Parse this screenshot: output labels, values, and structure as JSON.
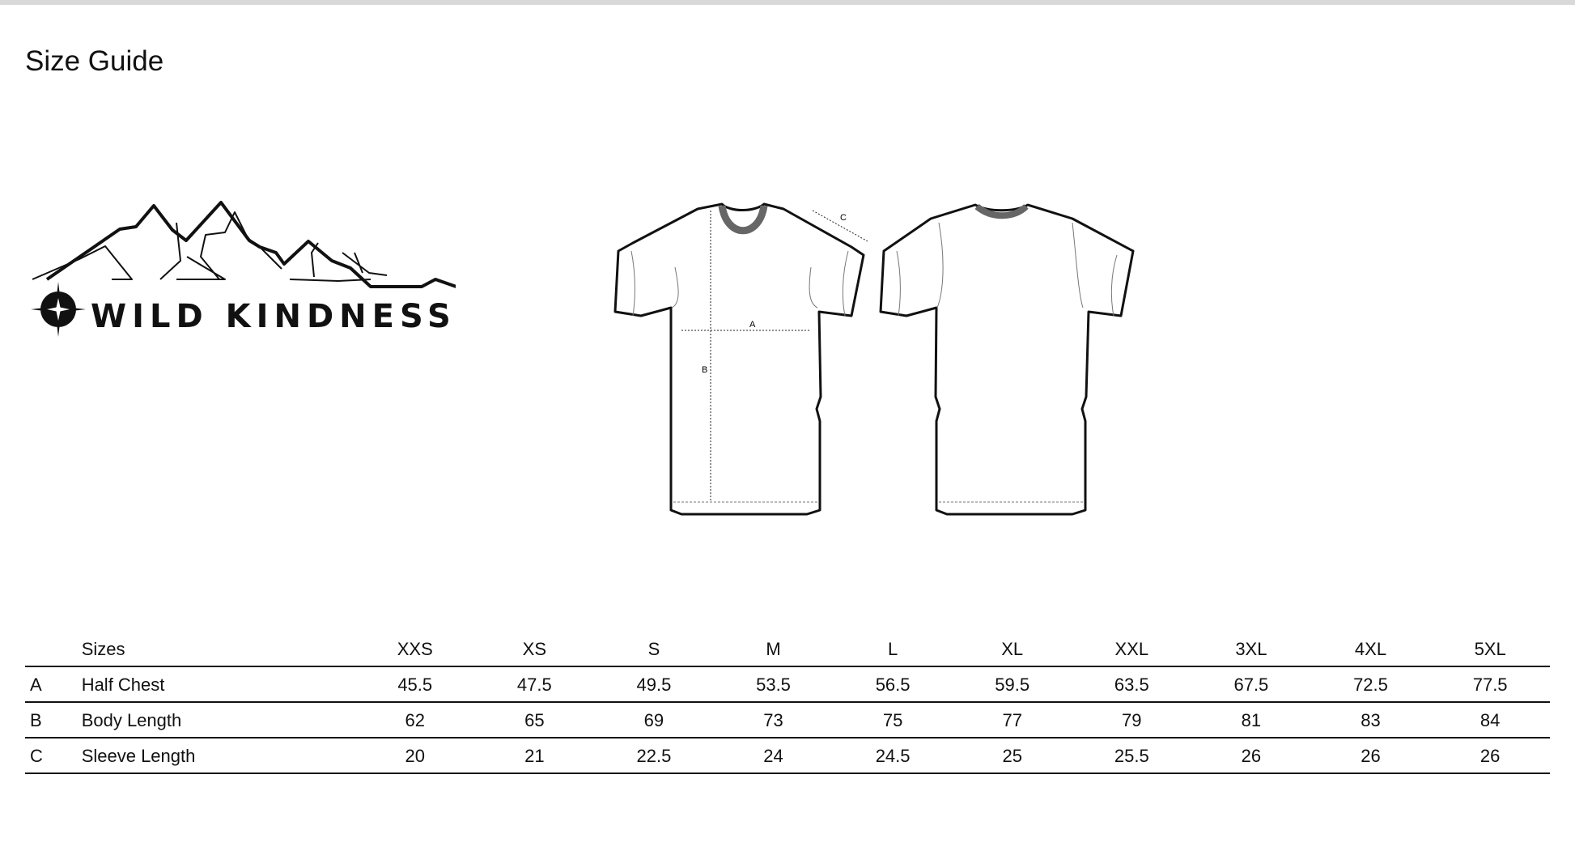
{
  "title": "Size Guide",
  "logo": {
    "text": "WILD KINDNESS",
    "icon": "mountain-range-compass-logo"
  },
  "diagram": {
    "front_labels": [
      "A",
      "B",
      "C"
    ]
  },
  "table": {
    "header_label": "Sizes",
    "sizes": [
      "XXS",
      "XS",
      "S",
      "M",
      "L",
      "XL",
      "XXL",
      "3XL",
      "4XL",
      "5XL"
    ],
    "rows": [
      {
        "letter": "A",
        "label": "Half Chest",
        "values": [
          "45.5",
          "47.5",
          "49.5",
          "53.5",
          "56.5",
          "59.5",
          "63.5",
          "67.5",
          "72.5",
          "77.5"
        ]
      },
      {
        "letter": "B",
        "label": "Body Length",
        "values": [
          "62",
          "65",
          "69",
          "73",
          "75",
          "77",
          "79",
          "81",
          "83",
          "84"
        ]
      },
      {
        "letter": "C",
        "label": "Sleeve Length",
        "values": [
          "20",
          "21",
          "22.5",
          "24",
          "24.5",
          "25",
          "25.5",
          "26",
          "26",
          "26"
        ]
      }
    ]
  }
}
